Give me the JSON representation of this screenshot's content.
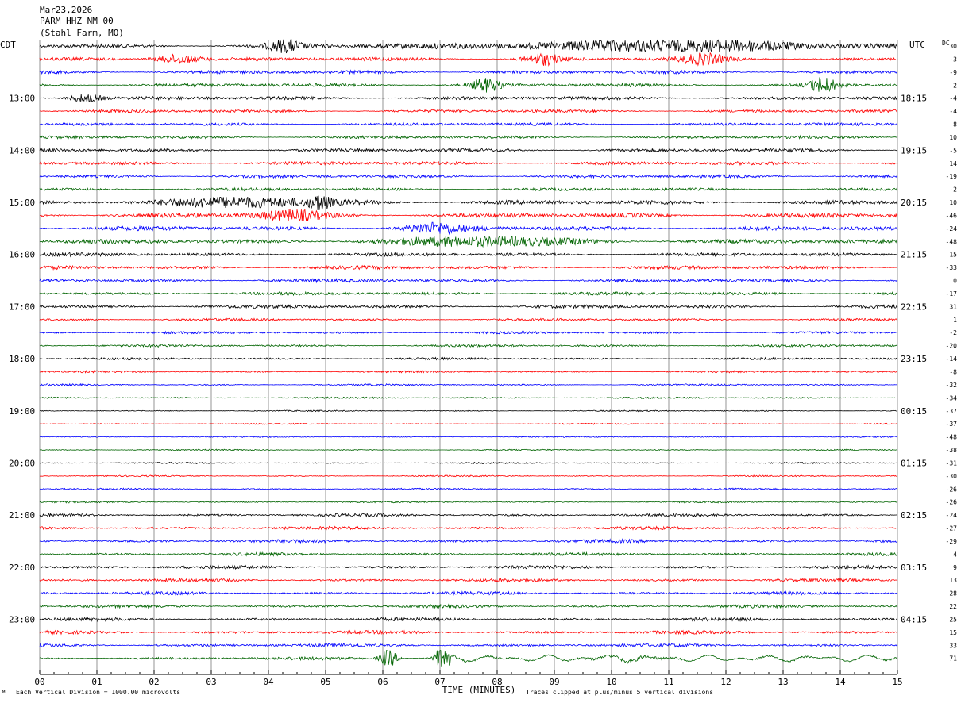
{
  "header": {
    "date": "Mar23,2026",
    "station": "PARM HHZ NM 00",
    "location": "(Stahl Farm, MO)"
  },
  "left_axis_label": "CDT",
  "right_axis_label": "UTC",
  "dc_label": "DC",
  "footer": {
    "xlabel": "TIME (MINUTES)",
    "scale_note": "Each Vertical Division = 1000.00 microvolts",
    "clip_note": "Traces clipped at plus/minus 5 vertical divisions"
  },
  "colors": {
    "black": "#000000",
    "red": "#ff0000",
    "blue": "#0000ff",
    "green": "#006400",
    "grid": "#000000"
  },
  "chart_data": {
    "type": "line",
    "title": "PARM HHZ NM 00",
    "xlabel": "TIME (MINUTES)",
    "xlim": [
      0,
      15
    ],
    "x_ticks": [
      "00",
      "01",
      "02",
      "03",
      "04",
      "05",
      "06",
      "07",
      "08",
      "09",
      "10",
      "11",
      "12",
      "13",
      "14",
      "15"
    ],
    "left_hour_labels": [
      "13:00",
      "14:00",
      "15:00",
      "16:00",
      "17:00",
      "18:00",
      "19:00",
      "20:00",
      "21:00",
      "22:00",
      "23:00"
    ],
    "right_hour_labels": [
      "18:15",
      "19:15",
      "20:15",
      "21:15",
      "22:15",
      "23:15",
      "00:15",
      "01:15",
      "02:15",
      "03:15",
      "04:15"
    ],
    "trace_colors": [
      "black",
      "red",
      "blue",
      "green"
    ],
    "dc_offsets": [
      30,
      -3,
      -9,
      2,
      -4,
      -4,
      8,
      10,
      -5,
      14,
      -19,
      -2,
      10,
      -46,
      -24,
      -48,
      15,
      -33,
      0,
      -17,
      31,
      1,
      -2,
      -20,
      -14,
      -8,
      -32,
      -34,
      -37,
      -37,
      -48,
      -38,
      -31,
      -30,
      -26,
      -26,
      -24,
      -27,
      -29,
      4,
      9,
      13,
      28,
      22,
      25,
      15,
      33,
      71
    ],
    "trace_amplitude": [
      3,
      2.6,
      2.6,
      2.6,
      2.6,
      2.2,
      2.2,
      2.2,
      2.6,
      2.6,
      2.4,
      2.2,
      3.2,
      3.4,
      3.2,
      3.2,
      2.6,
      2.6,
      2.6,
      2.4,
      2.6,
      1.8,
      1.8,
      1.8,
      1.6,
      1.4,
      1.2,
      1.2,
      0.9,
      0.9,
      0.9,
      0.9,
      1.0,
      1.0,
      1.2,
      1.2,
      2.0,
      2.2,
      2.4,
      2.2,
      2.4,
      2.2,
      2.2,
      2.2,
      2.4,
      2.4,
      2.4,
      2.2
    ],
    "events": [
      {
        "trace": 0,
        "minute": 11.0,
        "width": 3.2,
        "amp": 6
      },
      {
        "trace": 0,
        "minute": 4.3,
        "width": 0.3,
        "amp": 7
      },
      {
        "trace": 1,
        "minute": 2.4,
        "width": 0.4,
        "amp": 6
      },
      {
        "trace": 1,
        "minute": 8.8,
        "width": 0.3,
        "amp": 7
      },
      {
        "trace": 1,
        "minute": 11.6,
        "width": 0.4,
        "amp": 6
      },
      {
        "trace": 3,
        "minute": 7.8,
        "width": 0.25,
        "amp": 8
      },
      {
        "trace": 3,
        "minute": 13.7,
        "width": 0.25,
        "amp": 9
      },
      {
        "trace": 4,
        "minute": 0.8,
        "width": 0.3,
        "amp": 5
      },
      {
        "trace": 12,
        "minute": 3.6,
        "width": 1.6,
        "amp": 5
      },
      {
        "trace": 12,
        "minute": 4.9,
        "width": 0.15,
        "amp": 9
      },
      {
        "trace": 13,
        "minute": 4.4,
        "width": 0.6,
        "amp": 6
      },
      {
        "trace": 14,
        "minute": 6.9,
        "width": 0.5,
        "amp": 6
      },
      {
        "trace": 15,
        "minute": 7.8,
        "width": 1.6,
        "amp": 5
      },
      {
        "trace": 47,
        "minute": 6.1,
        "width": 0.15,
        "amp": 11
      },
      {
        "trace": 47,
        "minute": 7.05,
        "width": 0.12,
        "amp": 20
      }
    ]
  }
}
